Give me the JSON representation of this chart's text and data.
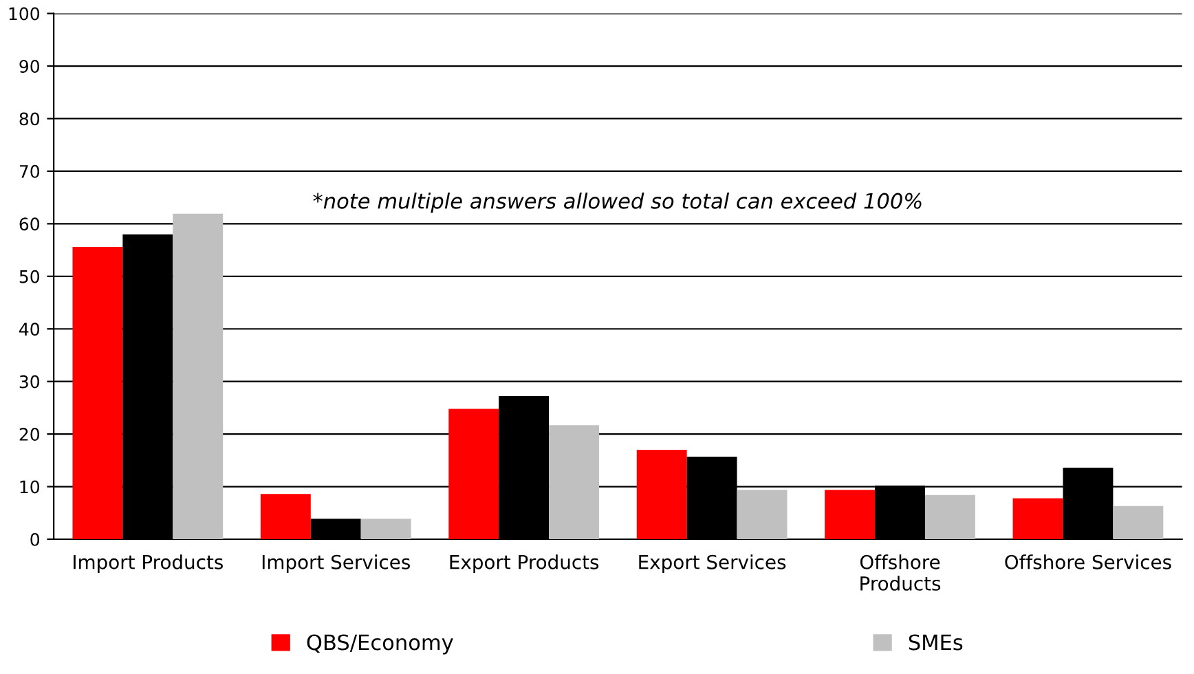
{
  "chart_data": {
    "type": "bar",
    "categories": [
      "Import Products",
      "Import Services",
      "Export Products",
      "Export Services",
      "Offshore\nProducts",
      "Offshore Services"
    ],
    "series": [
      {
        "name": "QBS/Economy",
        "color": "#ff0000",
        "values": [
          55.6,
          8.6,
          24.8,
          17.0,
          9.4,
          7.8
        ]
      },
      {
        "color": "#000000",
        "values": [
          58.0,
          3.9,
          27.2,
          15.7,
          10.2,
          13.6
        ]
      },
      {
        "name": "SMEs",
        "color": "#c0c0c0",
        "values": [
          61.9,
          3.9,
          21.7,
          9.4,
          8.4,
          6.3
        ]
      }
    ],
    "ylim": [
      0,
      100
    ],
    "yticks": [
      0,
      10,
      20,
      30,
      40,
      50,
      60,
      70,
      80,
      90,
      100
    ],
    "grid": "y",
    "legend": "bottom",
    "annotations": [
      "*note multiple answers allowed so total can exceed 100%"
    ]
  }
}
